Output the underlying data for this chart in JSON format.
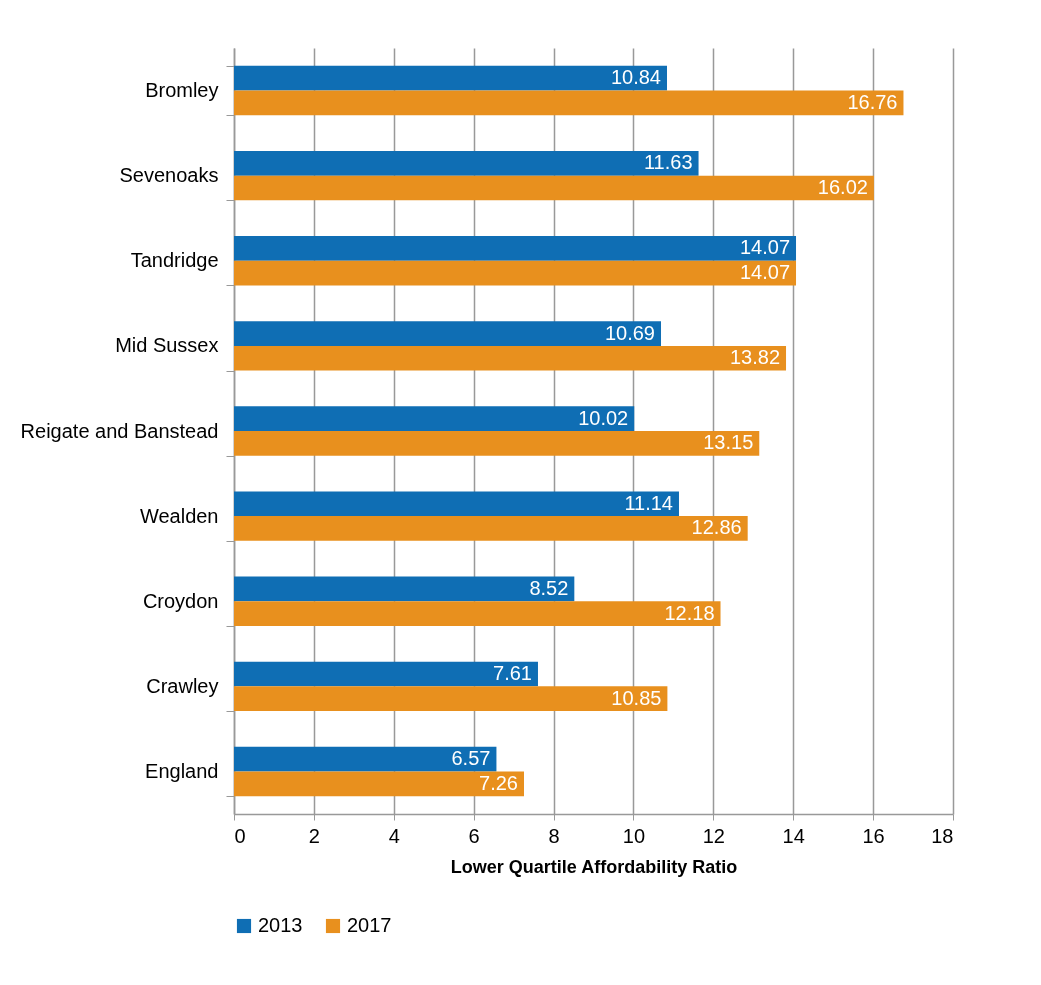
{
  "chart_data": {
    "type": "bar",
    "orientation": "horizontal",
    "xlabel": "Lower Quartile Affordability Ratio",
    "categories": [
      "Bromley",
      "Sevenoaks",
      "Tandridge",
      "Mid Sussex",
      "Reigate and Banstead",
      "Wealden",
      "Croydon",
      "Crawley",
      "England"
    ],
    "series": [
      {
        "name": "2013",
        "color": "#0f6eb4",
        "values": [
          10.84,
          11.63,
          14.07,
          10.69,
          10.02,
          11.14,
          8.52,
          7.61,
          6.57
        ]
      },
      {
        "name": "2017",
        "color": "#e8901e",
        "values": [
          16.76,
          16.02,
          14.07,
          13.82,
          13.15,
          12.86,
          12.18,
          10.85,
          7.26
        ]
      }
    ],
    "xlim": [
      0,
      18
    ],
    "xticks": [
      0,
      2,
      4,
      6,
      8,
      10,
      12,
      14,
      16,
      18
    ],
    "grid": "x",
    "legend": "bottom",
    "data_labels": true
  }
}
